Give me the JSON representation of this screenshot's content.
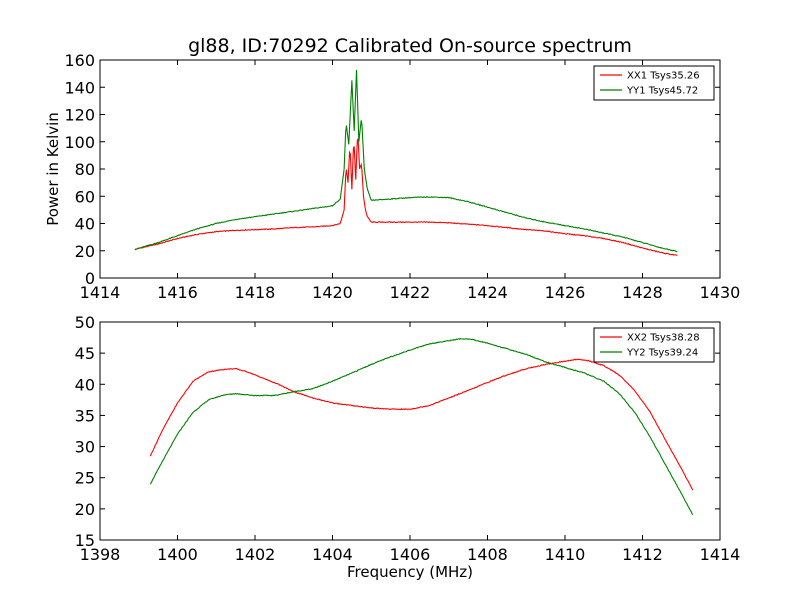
{
  "chart_data": [
    {
      "type": "line",
      "title": "gl88, ID:70292 Calibrated On-source spectrum",
      "xlabel": "",
      "ylabel": "Power in Kelvin",
      "xlim": [
        1414,
        1430
      ],
      "ylim": [
        0,
        160
      ],
      "xticks": [
        1414,
        1416,
        1418,
        1420,
        1422,
        1424,
        1426,
        1428,
        1430
      ],
      "yticks": [
        0,
        20,
        40,
        60,
        80,
        100,
        120,
        140,
        160
      ],
      "grid": false,
      "legend": "top-right",
      "series": [
        {
          "name": "XX1 Tsys35.26",
          "color": "#ff0000",
          "x": [
            1414.9,
            1415.5,
            1416.0,
            1416.5,
            1417.0,
            1417.5,
            1418.0,
            1418.5,
            1419.0,
            1419.5,
            1420.0,
            1420.2,
            1420.3,
            1420.35,
            1420.4,
            1420.45,
            1420.5,
            1420.55,
            1420.6,
            1420.65,
            1420.7,
            1420.75,
            1420.8,
            1420.85,
            1420.9,
            1421.0,
            1421.5,
            1422.0,
            1422.5,
            1423.0,
            1423.5,
            1424.0,
            1424.5,
            1425.0,
            1425.5,
            1426.0,
            1426.5,
            1427.0,
            1427.5,
            1428.0,
            1428.5,
            1428.9
          ],
          "values": [
            21,
            25,
            29,
            32,
            34,
            35,
            35.5,
            36,
            37,
            37.5,
            38.5,
            40,
            50,
            82,
            70,
            98,
            65,
            103,
            72,
            108,
            80,
            84,
            60,
            50,
            45,
            41,
            41,
            41,
            41,
            40.5,
            39.5,
            38.5,
            37,
            35.5,
            34.5,
            32.5,
            31,
            29,
            26,
            22,
            18.5,
            16.5
          ]
        },
        {
          "name": "YY1 Tsys45.72",
          "color": "#008000",
          "x": [
            1414.9,
            1415.5,
            1416.0,
            1416.5,
            1417.0,
            1417.5,
            1418.0,
            1418.5,
            1419.0,
            1419.5,
            1420.0,
            1420.2,
            1420.3,
            1420.35,
            1420.42,
            1420.5,
            1420.56,
            1420.62,
            1420.68,
            1420.75,
            1420.82,
            1420.9,
            1421.0,
            1421.5,
            1422.0,
            1422.5,
            1423.0,
            1423.5,
            1424.0,
            1424.5,
            1425.0,
            1425.5,
            1426.0,
            1426.5,
            1427.0,
            1427.5,
            1428.0,
            1428.5,
            1428.9
          ],
          "values": [
            21,
            26,
            31,
            36,
            40,
            43,
            45,
            47,
            49,
            51,
            53,
            58,
            80,
            114,
            98,
            145,
            108,
            153,
            100,
            118,
            80,
            65,
            57,
            58,
            59,
            59.5,
            59,
            56,
            52,
            48,
            44,
            41,
            38.5,
            36,
            33,
            30,
            26,
            22,
            19.5
          ]
        }
      ]
    },
    {
      "type": "line",
      "title": "",
      "xlabel": "Frequency (MHz)",
      "ylabel": "",
      "xlim": [
        1398,
        1414
      ],
      "ylim": [
        15,
        50
      ],
      "xticks": [
        1398,
        1400,
        1402,
        1404,
        1406,
        1408,
        1410,
        1412,
        1414
      ],
      "yticks": [
        15,
        20,
        25,
        30,
        35,
        40,
        45,
        50
      ],
      "grid": false,
      "legend": "top-right",
      "series": [
        {
          "name": "XX2 Tsys38.28",
          "color": "#ff0000",
          "x": [
            1399.3,
            1399.6,
            1400.0,
            1400.4,
            1400.8,
            1401.2,
            1401.5,
            1401.8,
            1402.2,
            1402.6,
            1403.0,
            1403.5,
            1404.0,
            1404.5,
            1405.0,
            1405.5,
            1406.0,
            1406.5,
            1407.0,
            1407.5,
            1408.0,
            1408.5,
            1409.0,
            1409.5,
            1410.0,
            1410.3,
            1410.6,
            1411.0,
            1411.4,
            1411.8,
            1412.2,
            1412.6,
            1413.0,
            1413.3
          ],
          "values": [
            28.5,
            32.5,
            37,
            40.5,
            42,
            42.4,
            42.5,
            42,
            41,
            40,
            38.8,
            37.8,
            37,
            36.6,
            36.2,
            36,
            36,
            36.6,
            37.8,
            39,
            40.3,
            41.5,
            42.5,
            43.2,
            43.7,
            44,
            43.8,
            43,
            41.5,
            39,
            35.5,
            31,
            26.5,
            23
          ]
        },
        {
          "name": "YY2 Tsys39.24",
          "color": "#008000",
          "x": [
            1399.3,
            1399.6,
            1400.0,
            1400.4,
            1400.8,
            1401.2,
            1401.5,
            1402.0,
            1402.5,
            1403.0,
            1403.5,
            1404.0,
            1404.5,
            1405.0,
            1405.5,
            1406.0,
            1406.5,
            1407.0,
            1407.3,
            1407.6,
            1408.0,
            1408.5,
            1409.0,
            1409.5,
            1410.0,
            1410.5,
            1411.0,
            1411.4,
            1411.8,
            1412.2,
            1412.6,
            1413.0,
            1413.3
          ],
          "values": [
            24,
            27.5,
            32,
            35.5,
            37.5,
            38.3,
            38.5,
            38.2,
            38.2,
            38.8,
            39.3,
            40.5,
            41.8,
            43.2,
            44.4,
            45.5,
            46.5,
            47,
            47.3,
            47.2,
            46.6,
            45.7,
            44.8,
            43.6,
            42.7,
            41.8,
            40.5,
            38.5,
            35.5,
            31.5,
            27,
            22.5,
            19
          ]
        }
      ]
    }
  ]
}
